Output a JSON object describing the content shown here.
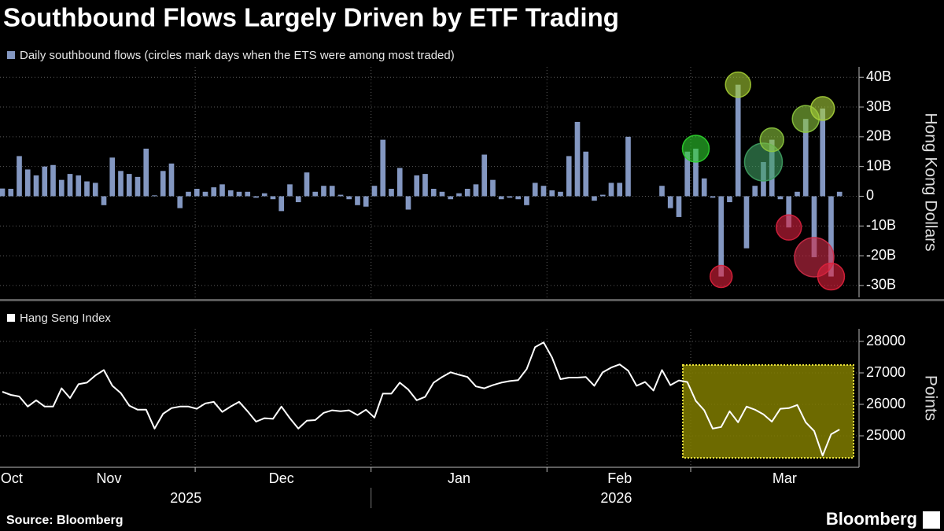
{
  "title": "Southbound Flows Largely Driven by ETF Trading",
  "source": "Source: Bloomberg",
  "logo": "Bloomberg",
  "chart_data": [
    {
      "type": "bar",
      "y_label": "Hong Kong Dollars",
      "categories": [
        null,
        null,
        null,
        null,
        null,
        null,
        null,
        null,
        null,
        null,
        null,
        null,
        null,
        null,
        null,
        null,
        null,
        null,
        null,
        null,
        null,
        null,
        null,
        null,
        null,
        null,
        null,
        null,
        null,
        null,
        null,
        null,
        null,
        null,
        null,
        null,
        null,
        null,
        null,
        null,
        null,
        null,
        null,
        null,
        null,
        null,
        null,
        null,
        null,
        null,
        null,
        null,
        null,
        null,
        null,
        null,
        null,
        null,
        null,
        null,
        null,
        null,
        null,
        null,
        null,
        null,
        null,
        null,
        null,
        null,
        null,
        null,
        null,
        null,
        null,
        null,
        null,
        null,
        null,
        null,
        null,
        null,
        null,
        null,
        null,
        null,
        null,
        null,
        null,
        null,
        null,
        null,
        null,
        null,
        null,
        null,
        null,
        null,
        null,
        null
      ],
      "series": [
        {
          "name": "Daily southbound flows (circles mark days when the ETS were among most traded)",
          "color": "#8397c1",
          "values": [
            2.6,
            2.5,
            13.5,
            9,
            7,
            10,
            10.5,
            5.5,
            7.5,
            7,
            5,
            4.5,
            -3,
            13,
            8.5,
            7.5,
            6.5,
            16,
            0.3,
            8.5,
            11,
            -4,
            1.5,
            2.5,
            1.5,
            3,
            4,
            2,
            1.5,
            1.5,
            -0.5,
            1,
            -1,
            -5,
            4,
            -2,
            8,
            1.5,
            3.5,
            3.5,
            0.5,
            -1,
            -3,
            -3.5,
            3.5,
            19,
            2.5,
            9.5,
            -4.5,
            7,
            7.5,
            2.5,
            1.5,
            -1,
            1,
            2.5,
            4,
            14,
            5.5,
            -1,
            -0.5,
            -1,
            -3,
            4.5,
            3.5,
            2,
            1.5,
            13.5,
            25,
            15,
            -1.5,
            0.5,
            4.5,
            4.5,
            20,
            null,
            null,
            null,
            3.5,
            -4,
            -7,
            15,
            16,
            6,
            -0.5,
            -27,
            -2,
            37.5,
            -17.5,
            3.5,
            11.5,
            19,
            -1,
            -10.5,
            1.5,
            26,
            -20.5,
            29.5,
            -27,
            1.5
          ],
          "markers": [
            {
              "index": 82,
              "size": 17,
              "color": "#2ed12e"
            },
            {
              "index": 85,
              "size": 14,
              "color": "#e0213c"
            },
            {
              "index": 87,
              "size": 16,
              "color": "#a3cc33"
            },
            {
              "index": 90,
              "size": 24,
              "color": "#3f9f62"
            },
            {
              "index": 91,
              "size": 15,
              "color": "#8cc63e"
            },
            {
              "index": 93,
              "size": 16,
              "color": "#d9213f"
            },
            {
              "index": 95,
              "size": 17,
              "color": "#8cc63e"
            },
            {
              "index": 96,
              "size": 25,
              "color": "#cf2c48"
            },
            {
              "index": 97,
              "size": 15,
              "color": "#a6cf3a"
            },
            {
              "index": 98,
              "size": 17,
              "color": "#e0213c"
            }
          ]
        }
      ],
      "xlim": [
        -0.28,
        101.12
      ],
      "ylim": [
        -34,
        43.5
      ],
      "yticks": [
        {
          "value": 40,
          "label": "40B"
        },
        {
          "value": 30,
          "label": "30B"
        },
        {
          "value": 20,
          "label": "20B"
        },
        {
          "value": 10,
          "label": "10B"
        },
        0,
        {
          "value": -10,
          "label": "-10B"
        },
        {
          "value": -20,
          "label": "-20B"
        },
        {
          "value": -30,
          "label": "-30B"
        }
      ],
      "grid": true
    },
    {
      "type": "line",
      "y_label": "Points",
      "categories": [
        null,
        null,
        null,
        null,
        null,
        null,
        null,
        null,
        null,
        null,
        null,
        null,
        null,
        null,
        null,
        null,
        null,
        null,
        null,
        null,
        null,
        null,
        null,
        null,
        null,
        null,
        null,
        null,
        null,
        null,
        null,
        null,
        null,
        null,
        null,
        null,
        null,
        null,
        null,
        null,
        null,
        null,
        null,
        null,
        null,
        null,
        null,
        null,
        null,
        null,
        null,
        null,
        null,
        null,
        null,
        null,
        null,
        null,
        null,
        null,
        null,
        null,
        null,
        null,
        null,
        null,
        null,
        null,
        null,
        null,
        null,
        null,
        null,
        null,
        null,
        null,
        null,
        null,
        null,
        null,
        null,
        null,
        null,
        null,
        null,
        null,
        null,
        null,
        null,
        null,
        null,
        null,
        null,
        null,
        null,
        null,
        null,
        null,
        null,
        null
      ],
      "series": [
        {
          "name": "Hang Seng Index",
          "color": "#ffffff",
          "values": [
            26400,
            26300,
            26250,
            25930,
            26130,
            25930,
            25930,
            26510,
            26200,
            26640,
            26690,
            26920,
            27090,
            26590,
            26360,
            25960,
            25830,
            25830,
            25230,
            25700,
            25880,
            25930,
            25930,
            25860,
            26030,
            26080,
            25760,
            25930,
            26080,
            25780,
            25450,
            25560,
            25540,
            25930,
            25560,
            25230,
            25480,
            25500,
            25730,
            25810,
            25780,
            25810,
            25660,
            25830,
            25580,
            26340,
            26340,
            26690,
            26470,
            26130,
            26240,
            26690,
            26870,
            27020,
            26940,
            26870,
            26570,
            26510,
            26610,
            26690,
            26740,
            26770,
            27120,
            27820,
            27970,
            27490,
            26800,
            26850,
            26850,
            26870,
            26590,
            27020,
            27170,
            27270,
            27070,
            26590,
            26710,
            26440,
            27090,
            26610,
            26760,
            26710,
            26110,
            25810,
            25230,
            25280,
            25780,
            25430,
            25930,
            25830,
            25680,
            25450,
            25860,
            25880,
            25980,
            25430,
            25150,
            24370,
            25050,
            25200
          ]
        }
      ],
      "xlim": [
        -0.28,
        101.12
      ],
      "ylim": [
        24000,
        28400
      ],
      "yticks": [
        28000,
        27000,
        26000,
        25000
      ],
      "grid": true,
      "xticks": [
        {
          "value": 1.1,
          "label": "Oct"
        },
        {
          "value": 12.6,
          "label": "Nov"
        },
        {
          "value": 33.0,
          "label": "Dec"
        },
        {
          "value": 54.0,
          "label": "Jan"
        },
        {
          "value": 73.0,
          "label": "Feb"
        },
        {
          "value": 92.5,
          "label": "Mar"
        }
      ],
      "years": [
        {
          "value": 21.7,
          "label": "2025"
        },
        {
          "value": 72.6,
          "label": "2026"
        }
      ],
      "year_breaks": [
        43.6
      ],
      "xgrid": [
        22.8,
        43.6,
        64.4,
        81.4
      ]
    }
  ]
}
